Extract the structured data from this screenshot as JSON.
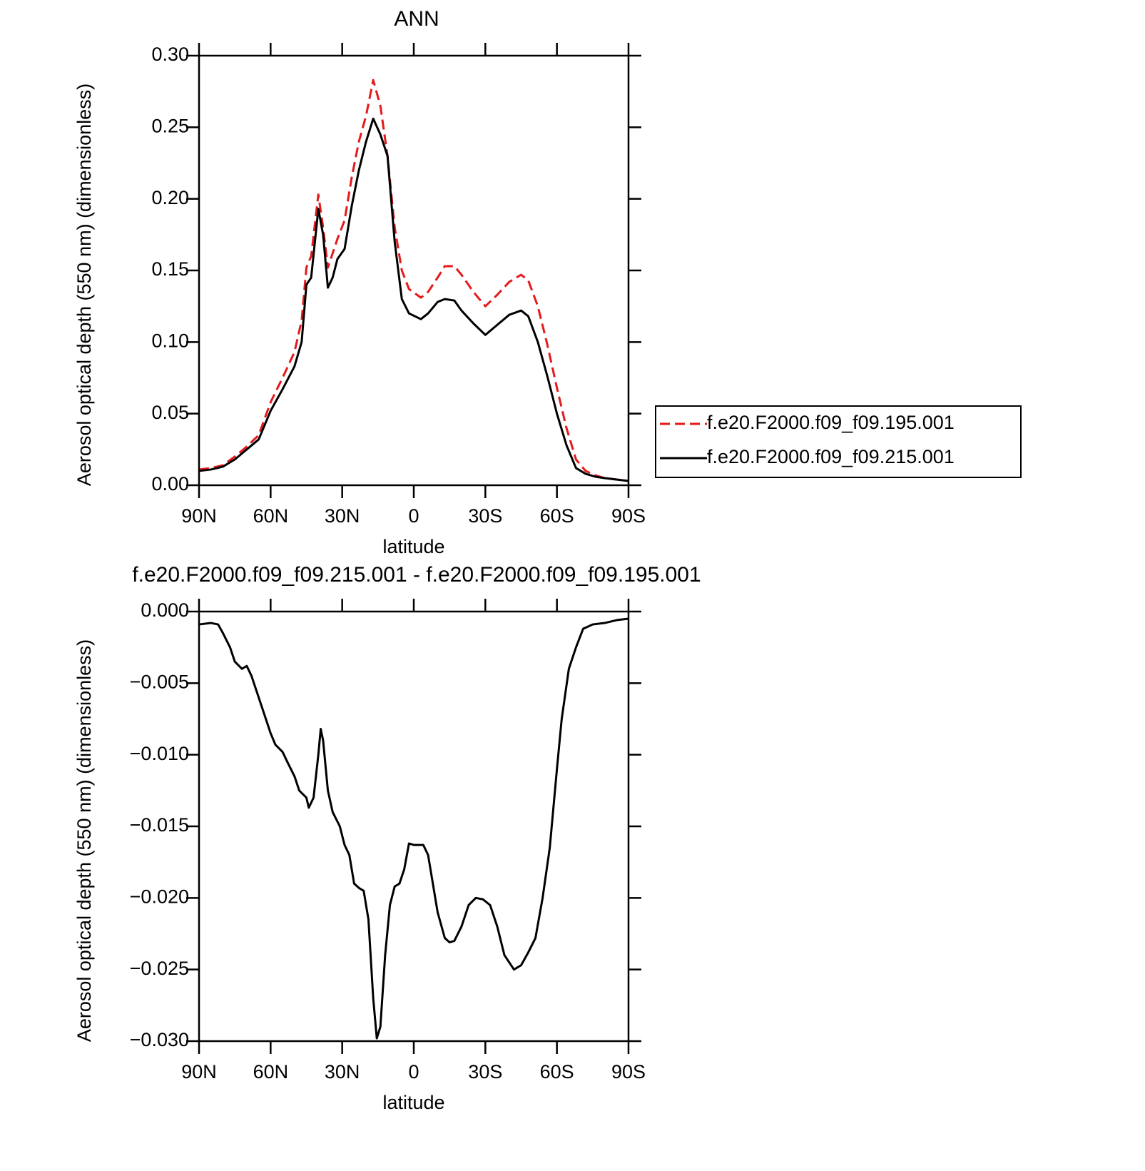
{
  "chart_data": [
    {
      "type": "line",
      "title": "ANN",
      "xlabel": "latitude",
      "ylabel": "Aerosol optical depth (550 nm) (dimensionless)",
      "x": [
        90,
        85,
        80,
        75,
        70,
        65,
        60,
        55,
        50,
        47,
        45,
        43,
        40,
        38,
        36,
        34,
        32,
        29,
        26,
        23,
        20,
        17,
        14,
        11,
        8,
        5,
        2,
        -3,
        -6,
        -10,
        -13,
        -17,
        -20,
        -25,
        -30,
        -35,
        -40,
        -45,
        -48,
        -52,
        -56,
        -60,
        -64,
        -68,
        -72,
        -76,
        -80,
        -85,
        -90
      ],
      "series": [
        {
          "name": "f.e20.F2000.f09_f09.195.001",
          "color": "#e41a1c",
          "line_style": "dashed",
          "values": [
            0.011,
            0.012,
            0.014,
            0.02,
            0.027,
            0.035,
            0.058,
            0.075,
            0.093,
            0.115,
            0.152,
            0.16,
            0.203,
            0.18,
            0.152,
            0.162,
            0.172,
            0.185,
            0.215,
            0.24,
            0.258,
            0.283,
            0.265,
            0.23,
            0.18,
            0.15,
            0.137,
            0.131,
            0.135,
            0.145,
            0.153,
            0.153,
            0.147,
            0.135,
            0.125,
            0.133,
            0.142,
            0.147,
            0.143,
            0.125,
            0.098,
            0.068,
            0.04,
            0.018,
            0.01,
            0.007,
            0.005,
            0.004,
            0.003
          ]
        },
        {
          "name": "f.e20.F2000.f09_f09.215.001",
          "color": "#000000",
          "line_style": "solid",
          "values": [
            0.01,
            0.011,
            0.013,
            0.018,
            0.025,
            0.032,
            0.052,
            0.067,
            0.083,
            0.1,
            0.14,
            0.145,
            0.193,
            0.175,
            0.138,
            0.145,
            0.158,
            0.165,
            0.195,
            0.22,
            0.24,
            0.256,
            0.245,
            0.23,
            0.17,
            0.13,
            0.12,
            0.116,
            0.12,
            0.128,
            0.13,
            0.129,
            0.122,
            0.113,
            0.105,
            0.112,
            0.119,
            0.122,
            0.118,
            0.1,
            0.076,
            0.05,
            0.028,
            0.012,
            0.008,
            0.006,
            0.005,
            0.004,
            0.003
          ]
        }
      ],
      "xlim": [
        90,
        -90
      ],
      "xticks": [
        {
          "value": 90,
          "label": "90N"
        },
        {
          "value": 60,
          "label": "60N"
        },
        {
          "value": 30,
          "label": "30N"
        },
        0,
        {
          "value": -30,
          "label": "30S"
        },
        {
          "value": -60,
          "label": "60S"
        },
        {
          "value": -90,
          "label": "90S"
        }
      ],
      "ylim": [
        0,
        0.3
      ],
      "yticks": [
        {
          "value": 0,
          "label": "0.00"
        },
        0.05,
        {
          "value": 0.1,
          "label": "0.10"
        },
        0.15,
        {
          "value": 0.2,
          "label": "0.20"
        },
        0.25,
        {
          "value": 0.3,
          "label": "0.30"
        }
      ],
      "legend_position": "right"
    },
    {
      "type": "line",
      "title": "f.e20.F2000.f09_f09.215.001 - f.e20.F2000.f09_f09.195.001",
      "xlabel": "latitude",
      "ylabel": "Aerosol optical depth (550 nm) (dimensionless)",
      "x": [
        90,
        85,
        82,
        80,
        77,
        75,
        72,
        70,
        68,
        65,
        62,
        60,
        58,
        55,
        53,
        50,
        48,
        45,
        44,
        42,
        40,
        39,
        38,
        36,
        34,
        31,
        29,
        27,
        25,
        23,
        21,
        19,
        17,
        15.5,
        14,
        12,
        10,
        8,
        6,
        4,
        2,
        0,
        -2,
        -4,
        -6,
        -8,
        -10,
        -13,
        -15,
        -17,
        -20,
        -23,
        -26,
        -29,
        -32,
        -35,
        -38,
        -42,
        -45,
        -48,
        -51,
        -54,
        -57,
        -60,
        -62,
        -65,
        -68,
        -71,
        -75,
        -80,
        -85,
        -90
      ],
      "series": [
        {
          "color": "#000000",
          "line_style": "solid",
          "values": [
            -0.0009,
            -0.0008,
            -0.0009,
            -0.0015,
            -0.0025,
            -0.0035,
            -0.004,
            -0.0038,
            -0.0045,
            -0.006,
            -0.0075,
            -0.0085,
            -0.0093,
            -0.0098,
            -0.0105,
            -0.0115,
            -0.0125,
            -0.013,
            -0.0137,
            -0.013,
            -0.01,
            -0.0082,
            -0.009,
            -0.0125,
            -0.014,
            -0.015,
            -0.0163,
            -0.017,
            -0.019,
            -0.0193,
            -0.0195,
            -0.0215,
            -0.027,
            -0.0298,
            -0.029,
            -0.024,
            -0.0205,
            -0.0192,
            -0.019,
            -0.018,
            -0.0162,
            -0.0163,
            -0.0163,
            -0.0163,
            -0.017,
            -0.019,
            -0.021,
            -0.0228,
            -0.0231,
            -0.023,
            -0.022,
            -0.0205,
            -0.02,
            -0.0201,
            -0.0205,
            -0.022,
            -0.024,
            -0.025,
            -0.0247,
            -0.0238,
            -0.0228,
            -0.02,
            -0.0165,
            -0.011,
            -0.0075,
            -0.004,
            -0.0025,
            -0.0012,
            -0.0009,
            -0.0008,
            -0.0006,
            -0.0005
          ]
        }
      ],
      "xlim": [
        90,
        -90
      ],
      "xticks": [
        {
          "value": 90,
          "label": "90N"
        },
        {
          "value": 60,
          "label": "60N"
        },
        {
          "value": 30,
          "label": "30N"
        },
        0,
        {
          "value": -30,
          "label": "30S"
        },
        {
          "value": -60,
          "label": "60S"
        },
        {
          "value": -90,
          "label": "90S"
        }
      ],
      "ylim": [
        -0.03,
        0
      ],
      "yticks": [
        {
          "value": 0,
          "label": "0.000"
        },
        {
          "value": -0.005,
          "label": "−0.005"
        },
        {
          "value": -0.01,
          "label": "−0.010"
        },
        {
          "value": -0.015,
          "label": "−0.015"
        },
        {
          "value": -0.02,
          "label": "−0.020"
        },
        {
          "value": -0.025,
          "label": "−0.025"
        },
        {
          "value": -0.03,
          "label": "−0.030"
        }
      ]
    }
  ]
}
